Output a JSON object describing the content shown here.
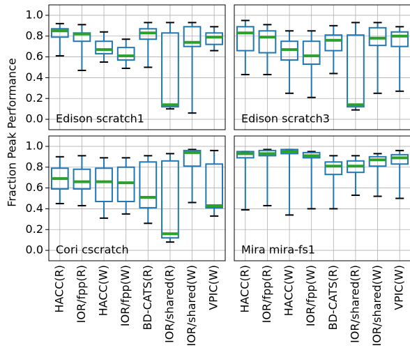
{
  "chart_data": [
    {
      "type": "box",
      "title": "Edison scratch1",
      "ylabel": "Fraction Peak Performance",
      "ylim": [
        -0.1,
        1.1
      ],
      "yticks": [
        {
          "value": 0,
          "label": "0.0"
        },
        0.2,
        0.4,
        0.6,
        0.8,
        {
          "value": 1,
          "label": "1.0"
        }
      ],
      "grid": true,
      "color": "#1f77b4",
      "median_color": "#2ca02c",
      "whislo": [
        0.61,
        0.47,
        0.55,
        0.49,
        0.5,
        0.1,
        0.06,
        0.66
      ],
      "q1": [
        0.79,
        0.75,
        0.63,
        0.57,
        0.77,
        0.12,
        0.7,
        0.72
      ],
      "med": [
        0.85,
        0.82,
        0.67,
        0.61,
        0.83,
        0.14,
        0.74,
        0.79
      ],
      "q3": [
        0.87,
        0.83,
        0.75,
        0.69,
        0.87,
        0.83,
        0.89,
        0.83
      ],
      "whishi": [
        0.92,
        0.91,
        0.84,
        0.77,
        0.93,
        0.93,
        0.93,
        0.89
      ]
    },
    {
      "type": "box",
      "title": "Edison scratch3",
      "ylim": [
        -0.1,
        1.1
      ],
      "yticks": [
        0,
        0.2,
        0.4,
        0.6,
        0.8,
        1
      ],
      "grid": true,
      "color": "#1f77b4",
      "median_color": "#2ca02c",
      "whislo": [
        0.43,
        0.43,
        0.25,
        0.21,
        0.44,
        0.09,
        0.25,
        0.27
      ],
      "q1": [
        0.66,
        0.64,
        0.57,
        0.53,
        0.66,
        0.12,
        0.71,
        0.7
      ],
      "med": [
        0.83,
        0.79,
        0.67,
        0.61,
        0.76,
        0.14,
        0.78,
        0.8
      ],
      "q3": [
        0.89,
        0.85,
        0.75,
        0.75,
        0.81,
        0.81,
        0.88,
        0.84
      ],
      "whishi": [
        0.95,
        0.91,
        0.85,
        0.85,
        0.9,
        0.93,
        0.93,
        0.89
      ]
    },
    {
      "type": "box",
      "title": "Cori cscratch",
      "categories": [
        "HACC(R)",
        "IOR/fpp(R)",
        "HACC(W)",
        "IOR/fpp(W)",
        "BD-CATS(R)",
        "IOR/shared(R)",
        "IOR/shared(W)",
        "VPIC(W)"
      ],
      "ylim": [
        -0.1,
        1.1
      ],
      "yticks": [
        {
          "value": 0,
          "label": "0.0"
        },
        0.2,
        0.4,
        0.6,
        0.8,
        {
          "value": 1,
          "label": "1.0"
        }
      ],
      "grid": true,
      "color": "#1f77b4",
      "median_color": "#2ca02c",
      "whislo": [
        0.45,
        0.43,
        0.31,
        0.35,
        0.26,
        0.08,
        0.46,
        0.33
      ],
      "q1": [
        0.59,
        0.59,
        0.47,
        0.47,
        0.41,
        0.12,
        0.81,
        0.41
      ],
      "med": [
        0.69,
        0.66,
        0.66,
        0.65,
        0.51,
        0.16,
        0.94,
        0.43
      ],
      "q3": [
        0.79,
        0.78,
        0.79,
        0.8,
        0.85,
        0.86,
        0.96,
        0.83
      ],
      "whishi": [
        0.9,
        0.91,
        0.89,
        0.89,
        0.91,
        0.93,
        0.97,
        0.96
      ]
    },
    {
      "type": "box",
      "title": "Mira mira-fs1",
      "categories": [
        "HACC(R)",
        "IOR/fpp(R)",
        "HACC(W)",
        "IOR/fpp(W)",
        "BD-CATS(R)",
        "IOR/shared(R)",
        "IOR/shared(W)",
        "VPIC(W)"
      ],
      "ylim": [
        -0.1,
        1.1
      ],
      "yticks": [
        0,
        0.2,
        0.4,
        0.6,
        0.8,
        1
      ],
      "grid": true,
      "color": "#1f77b4",
      "median_color": "#2ca02c",
      "whislo": [
        0.39,
        0.43,
        0.34,
        0.4,
        0.4,
        0.53,
        0.52,
        0.5
      ],
      "q1": [
        0.89,
        0.91,
        0.93,
        0.89,
        0.73,
        0.75,
        0.81,
        0.83
      ],
      "med": [
        0.93,
        0.93,
        0.95,
        0.91,
        0.81,
        0.81,
        0.87,
        0.89
      ],
      "q3": [
        0.95,
        0.96,
        0.97,
        0.94,
        0.85,
        0.86,
        0.9,
        0.92
      ],
      "whishi": [
        0.95,
        0.97,
        0.97,
        0.95,
        0.91,
        0.91,
        0.93,
        0.96
      ]
    }
  ]
}
